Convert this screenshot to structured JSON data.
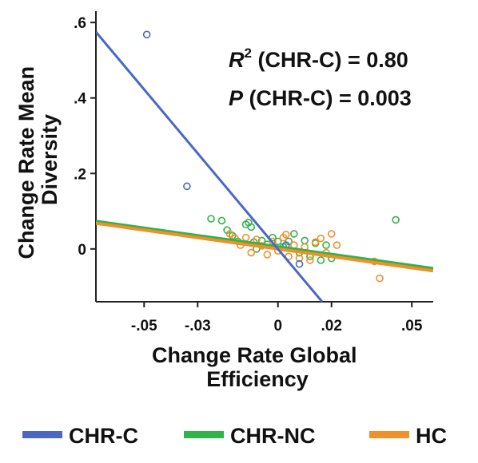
{
  "chart_data": {
    "type": "scatter",
    "xlabel": [
      "Change Rate Global",
      "Efficiency"
    ],
    "ylabel": [
      "Change Rate Mean",
      "Diversity"
    ],
    "xlim": [
      -0.068,
      0.058
    ],
    "ylim": [
      -0.14,
      0.63
    ],
    "x_tick_values": [
      -0.05,
      -0.03,
      0,
      0.02,
      0.05
    ],
    "x_tick_labels": [
      "-.05",
      "-.03",
      "0",
      ".02",
      ".05"
    ],
    "y_tick_values": [
      0.6,
      0.4,
      0.2,
      0
    ],
    "y_tick_labels": [
      ".6",
      ".4",
      ".2",
      "0"
    ],
    "grid": false,
    "legend_position": "bottom",
    "annotations": {
      "r2_label": "R",
      "r2_sup": "2",
      "r2_text": " (CHR-C) = 0.80",
      "p_label": "P",
      "p_text": " (CHR-C) = 0.003"
    },
    "series": [
      {
        "name": "CHR-C",
        "color": "#4a67c4",
        "points": [
          [
            -0.049,
            0.568
          ],
          [
            -0.034,
            0.166
          ],
          [
            0.008,
            -0.04
          ],
          [
            0.003,
            0.01
          ]
        ],
        "fit": {
          "x0": -0.068,
          "y0": 0.575,
          "x1": 0.0165,
          "y1": -0.14
        }
      },
      {
        "name": "CHR-NC",
        "color": "#2fb34a",
        "points": [
          [
            -0.025,
            0.08
          ],
          [
            -0.021,
            0.075
          ],
          [
            -0.019,
            0.05
          ],
          [
            -0.017,
            0.035
          ],
          [
            -0.015,
            0.02
          ],
          [
            -0.012,
            0.065
          ],
          [
            -0.011,
            0.07
          ],
          [
            -0.01,
            0.058
          ],
          [
            -0.009,
            0.018
          ],
          [
            -0.008,
            0.0
          ],
          [
            -0.006,
            0.022
          ],
          [
            -0.004,
            0.012
          ],
          [
            -0.002,
            0.03
          ],
          [
            0.0,
            0.02
          ],
          [
            0.002,
            0.005
          ],
          [
            0.004,
            0.02
          ],
          [
            0.006,
            0.04
          ],
          [
            0.008,
            -0.01
          ],
          [
            0.01,
            0.022
          ],
          [
            0.012,
            -0.02
          ],
          [
            0.014,
            0.015
          ],
          [
            0.016,
            -0.03
          ],
          [
            0.018,
            0.01
          ],
          [
            0.02,
            -0.025
          ],
          [
            0.044,
            0.077
          ]
        ],
        "fit": {
          "x0": -0.068,
          "y0": 0.073,
          "x1": 0.058,
          "y1": -0.052
        }
      },
      {
        "name": "HC",
        "color": "#f0902a",
        "points": [
          [
            -0.018,
            0.04
          ],
          [
            -0.016,
            0.028
          ],
          [
            -0.014,
            0.01
          ],
          [
            -0.012,
            0.03
          ],
          [
            -0.01,
            -0.01
          ],
          [
            -0.008,
            0.025
          ],
          [
            -0.006,
            0.008
          ],
          [
            -0.004,
            -0.015
          ],
          [
            -0.002,
            0.02
          ],
          [
            0.0,
            -0.005
          ],
          [
            0.002,
            0.03
          ],
          [
            0.003,
            0.038
          ],
          [
            0.004,
            -0.02
          ],
          [
            0.006,
            0.01
          ],
          [
            0.008,
            -0.025
          ],
          [
            0.01,
            0.005
          ],
          [
            0.012,
            -0.03
          ],
          [
            0.014,
            0.018
          ],
          [
            0.016,
            0.028
          ],
          [
            0.018,
            -0.01
          ],
          [
            0.02,
            0.04
          ],
          [
            0.022,
            0.01
          ],
          [
            0.036,
            -0.033
          ],
          [
            0.038,
            -0.078
          ]
        ],
        "fit": {
          "x0": -0.068,
          "y0": 0.068,
          "x1": 0.058,
          "y1": -0.058
        }
      }
    ]
  }
}
